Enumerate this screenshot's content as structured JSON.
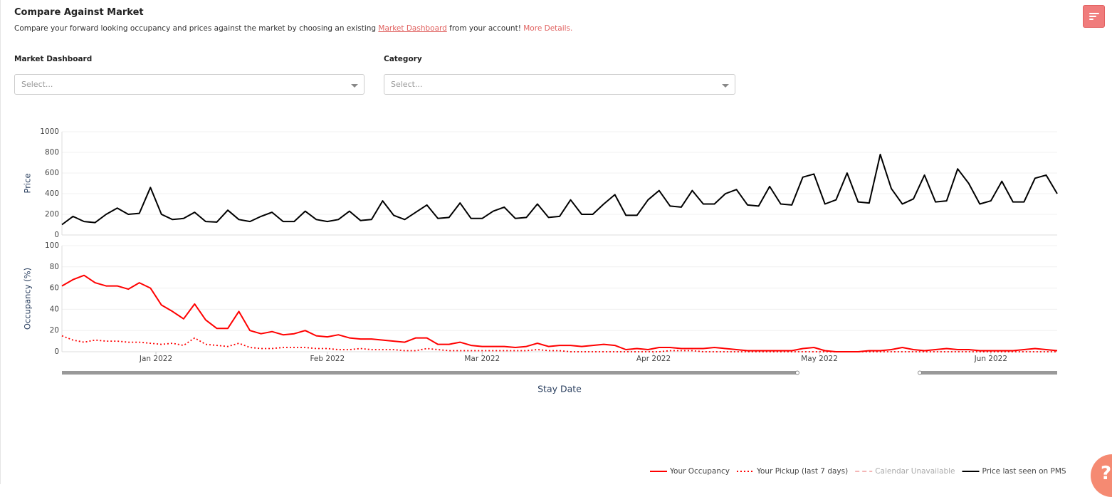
{
  "header": {
    "title": "Compare Against Market",
    "description_prefix": "Compare your forward looking occupancy and prices against the market by choosing an existing ",
    "link": "Market Dashboard",
    "description_suffix": " from your account! ",
    "more": "More Details."
  },
  "filters": [
    {
      "label": "Market Dashboard",
      "placeholder": "Select..."
    },
    {
      "label": "Category",
      "placeholder": "Select..."
    }
  ],
  "help": "?",
  "chart_data": [
    {
      "type": "line",
      "ylabel": "Price",
      "xlim": [
        0,
        90
      ],
      "ylim": [
        0,
        1000
      ],
      "yticks": [
        0,
        200,
        400,
        600,
        800,
        1000
      ],
      "grid": true,
      "series": [
        {
          "name": "Price last seen on PMS",
          "color": "#000000",
          "dash": "solid",
          "values": [
            100,
            180,
            130,
            120,
            200,
            260,
            200,
            210,
            460,
            200,
            150,
            160,
            220,
            130,
            125,
            240,
            150,
            130,
            180,
            220,
            130,
            130,
            230,
            150,
            130,
            150,
            230,
            140,
            150,
            330,
            190,
            150,
            220,
            290,
            160,
            170,
            310,
            160,
            160,
            230,
            270,
            160,
            170,
            300,
            170,
            180,
            340,
            200,
            200,
            300,
            390,
            190,
            190,
            340,
            430,
            280,
            270,
            430,
            300,
            300,
            400,
            440,
            290,
            280,
            470,
            300,
            290,
            560,
            590,
            300,
            340,
            600,
            320,
            310,
            780,
            450,
            300,
            350,
            580,
            320,
            330,
            640,
            500,
            300,
            330,
            520,
            320,
            320,
            550,
            580,
            400
          ]
        }
      ]
    },
    {
      "type": "line",
      "ylabel": "Occupancy (%)",
      "xlabel": "Stay Date",
      "xlim": [
        0,
        90
      ],
      "ylim": [
        0,
        100
      ],
      "yticks": [
        0,
        20,
        40,
        60,
        80,
        100
      ],
      "grid": true,
      "xticks": [
        {
          "value": 8.5,
          "label": "Jan 2022"
        },
        {
          "value": 24,
          "label": "Feb 2022"
        },
        {
          "value": 38,
          "label": "Mar 2022"
        },
        {
          "value": 53.5,
          "label": "Apr 2022"
        },
        {
          "value": 68.5,
          "label": "May 2022"
        },
        {
          "value": 84,
          "label": "Jun 2022"
        }
      ],
      "series": [
        {
          "name": "Your Occupancy",
          "color": "#ff0000",
          "dash": "solid",
          "values": [
            62,
            68,
            72,
            65,
            62,
            62,
            59,
            65,
            60,
            44,
            38,
            31,
            45,
            30,
            22,
            22,
            38,
            20,
            17,
            19,
            16,
            17,
            20,
            15,
            14,
            16,
            13,
            12,
            12,
            11,
            10,
            9,
            13,
            13,
            7,
            7,
            9,
            6,
            5,
            5,
            5,
            4,
            5,
            8,
            5,
            6,
            6,
            5,
            6,
            7,
            6,
            2,
            3,
            2,
            4,
            4,
            3,
            3,
            3,
            4,
            3,
            2,
            1,
            1,
            1,
            1,
            1,
            3,
            4,
            1,
            0,
            0,
            0,
            1,
            1,
            2,
            4,
            2,
            1,
            2,
            3,
            2,
            2,
            1,
            1,
            1,
            1,
            2,
            3,
            2,
            1
          ]
        },
        {
          "name": "Your Pickup (last 7 days)",
          "color": "#ff0000",
          "dash": "dot",
          "values": [
            15,
            11,
            9,
            11,
            10,
            10,
            9,
            9,
            8,
            7,
            8,
            6,
            13,
            7,
            6,
            5,
            8,
            4,
            3,
            3,
            4,
            4,
            4,
            3,
            3,
            2,
            2,
            3,
            2,
            2,
            2,
            1,
            1,
            3,
            2,
            1,
            1,
            1,
            1,
            1,
            1,
            1,
            1,
            2,
            1,
            1,
            0,
            0,
            0,
            0,
            0,
            0,
            0,
            0,
            0,
            1,
            1,
            1,
            0,
            0,
            0,
            0,
            0,
            0,
            0,
            0,
            0,
            0,
            0,
            0,
            0,
            0,
            0,
            0,
            0,
            0,
            0,
            0,
            0,
            0,
            0,
            0,
            0,
            0,
            0,
            0,
            0,
            0,
            0,
            0,
            0
          ]
        },
        {
          "name": "Calendar Unavailable",
          "color": "#f4b6b6",
          "dash": "dash",
          "values": []
        }
      ]
    }
  ]
}
